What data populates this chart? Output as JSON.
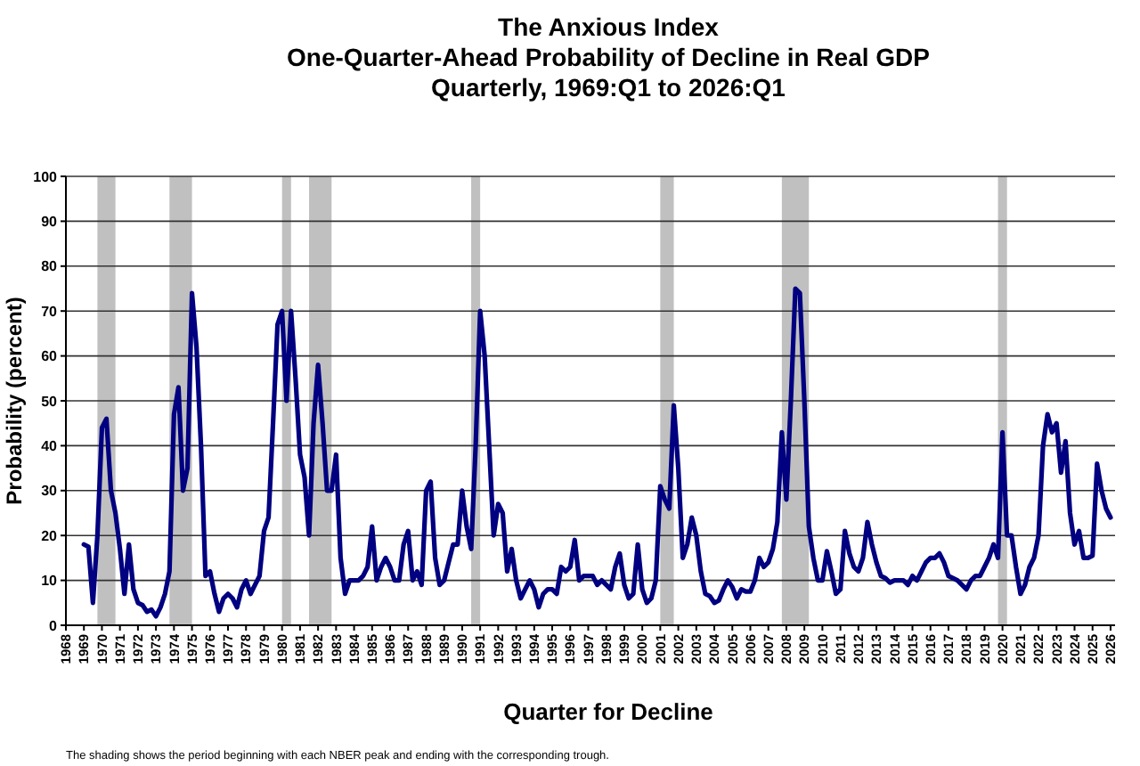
{
  "chart_data": {
    "type": "line",
    "title": "The Anxious Index",
    "subtitle": "One-Quarter-Ahead Probability of Decline in Real GDP\nQuarterly, 1969:Q1 to 2026:Q1",
    "xlabel": "Quarter for Decline",
    "ylabel": "Probability (percent)",
    "annotations": [
      "The shading shows the period beginning with each NBER peak and ending with the corresponding trough."
    ],
    "xlim": [
      1968,
      2026.25
    ],
    "xticks": [
      1968,
      1969,
      1970,
      1971,
      1972,
      1973,
      1974,
      1975,
      1976,
      1977,
      1978,
      1979,
      1980,
      1981,
      1982,
      1983,
      1984,
      1985,
      1986,
      1987,
      1988,
      1989,
      1990,
      1991,
      1992,
      1993,
      1994,
      1995,
      1996,
      1997,
      1998,
      1999,
      2000,
      2001,
      2002,
      2003,
      2004,
      2005,
      2006,
      2007,
      2008,
      2009,
      2010,
      2011,
      2012,
      2013,
      2014,
      2015,
      2016,
      2017,
      2018,
      2019,
      2020,
      2021,
      2022,
      2023,
      2024,
      2025,
      2026
    ],
    "ylim": [
      0,
      100
    ],
    "yticks": [
      0,
      10,
      20,
      30,
      40,
      50,
      60,
      70,
      80,
      90,
      100
    ],
    "grid": "y",
    "marker": "none",
    "line_style": "solid",
    "bands": [
      {
        "axis": "x",
        "from": 1969.75,
        "to": 1970.75,
        "color": "#c0c0c0"
      },
      {
        "axis": "x",
        "from": 1973.75,
        "to": 1975.0,
        "color": "#c0c0c0"
      },
      {
        "axis": "x",
        "from": 1980.0,
        "to": 1980.5,
        "color": "#c0c0c0"
      },
      {
        "axis": "x",
        "from": 1981.5,
        "to": 1982.75,
        "color": "#c0c0c0"
      },
      {
        "axis": "x",
        "from": 1990.5,
        "to": 1991.0,
        "color": "#c0c0c0"
      },
      {
        "axis": "x",
        "from": 2001.0,
        "to": 2001.75,
        "color": "#c0c0c0"
      },
      {
        "axis": "x",
        "from": 2007.75,
        "to": 2009.25,
        "color": "#c0c0c0"
      },
      {
        "axis": "x",
        "from": 2019.75,
        "to": 2020.25,
        "color": "#c0c0c0"
      }
    ],
    "series": [
      {
        "color": "#000080",
        "x": [
          1969,
          1969.25,
          1969.5,
          1969.75,
          1970,
          1970.25,
          1970.5,
          1970.75,
          1971,
          1971.25,
          1971.5,
          1971.75,
          1972,
          1972.25,
          1972.5,
          1972.75,
          1973,
          1973.25,
          1973.5,
          1973.75,
          1974,
          1974.25,
          1974.5,
          1974.75,
          1975,
          1975.25,
          1975.5,
          1975.75,
          1976,
          1976.25,
          1976.5,
          1976.75,
          1977,
          1977.25,
          1977.5,
          1977.75,
          1978,
          1978.25,
          1978.5,
          1978.75,
          1979,
          1979.25,
          1979.5,
          1979.75,
          1980,
          1980.25,
          1980.5,
          1980.75,
          1981,
          1981.25,
          1981.5,
          1981.75,
          1982,
          1982.25,
          1982.5,
          1982.75,
          1983,
          1983.25,
          1983.5,
          1983.75,
          1984,
          1984.25,
          1984.5,
          1984.75,
          1985,
          1985.25,
          1985.5,
          1985.75,
          1986,
          1986.25,
          1986.5,
          1986.75,
          1987,
          1987.25,
          1987.5,
          1987.75,
          1988,
          1988.25,
          1988.5,
          1988.75,
          1989,
          1989.25,
          1989.5,
          1989.75,
          1990,
          1990.25,
          1990.5,
          1990.75,
          1991,
          1991.25,
          1991.5,
          1991.75,
          1992,
          1992.25,
          1992.5,
          1992.75,
          1993,
          1993.25,
          1993.5,
          1993.75,
          1994,
          1994.25,
          1994.5,
          1994.75,
          1995,
          1995.25,
          1995.5,
          1995.75,
          1996,
          1996.25,
          1996.5,
          1996.75,
          1997,
          1997.25,
          1997.5,
          1997.75,
          1998,
          1998.25,
          1998.5,
          1998.75,
          1999,
          1999.25,
          1999.5,
          1999.75,
          2000,
          2000.25,
          2000.5,
          2000.75,
          2001,
          2001.25,
          2001.5,
          2001.75,
          2002,
          2002.25,
          2002.5,
          2002.75,
          2003,
          2003.25,
          2003.5,
          2003.75,
          2004,
          2004.25,
          2004.5,
          2004.75,
          2005,
          2005.25,
          2005.5,
          2005.75,
          2006,
          2006.25,
          2006.5,
          2006.75,
          2007,
          2007.25,
          2007.5,
          2007.75,
          2008,
          2008.25,
          2008.5,
          2008.75,
          2009,
          2009.25,
          2009.5,
          2009.75,
          2010,
          2010.25,
          2010.5,
          2010.75,
          2011,
          2011.25,
          2011.5,
          2011.75,
          2012,
          2012.25,
          2012.5,
          2012.75,
          2013,
          2013.25,
          2013.5,
          2013.75,
          2014,
          2014.25,
          2014.5,
          2014.75,
          2015,
          2015.25,
          2015.5,
          2015.75,
          2016,
          2016.25,
          2016.5,
          2016.75,
          2017,
          2017.25,
          2017.5,
          2017.75,
          2018,
          2018.25,
          2018.5,
          2018.75,
          2019,
          2019.25,
          2019.5,
          2019.75,
          2020,
          2020.25,
          2020.5,
          2020.75,
          2021,
          2021.25,
          2021.5,
          2021.75,
          2022,
          2022.25,
          2022.5,
          2022.75,
          2023,
          2023.25,
          2023.5,
          2023.75,
          2024,
          2024.25,
          2024.5,
          2024.75,
          2025,
          2025.25,
          2025.5,
          2025.75,
          2026
        ],
        "values": [
          18,
          17.5,
          5,
          20,
          44,
          46,
          30,
          25,
          17,
          7,
          18,
          8,
          5,
          4.5,
          3,
          3.5,
          2,
          4,
          7,
          12,
          47,
          53,
          30,
          35,
          74,
          62,
          40,
          11,
          12,
          7,
          3,
          6,
          7,
          6,
          4,
          8,
          10,
          7,
          9,
          11,
          21,
          24,
          45,
          67,
          70,
          50,
          70,
          55,
          38,
          33,
          20,
          45,
          58,
          45,
          30,
          30,
          38,
          15,
          7,
          10,
          10,
          10,
          11,
          13,
          22,
          10,
          13,
          15,
          13,
          10,
          10,
          18,
          21,
          10,
          12,
          9,
          30,
          32,
          15,
          9,
          10,
          14,
          18,
          18,
          30,
          22,
          17,
          40,
          70,
          60,
          40,
          20,
          27,
          25,
          12,
          17,
          10,
          6,
          8,
          10,
          8,
          4,
          7,
          8,
          8,
          7,
          13,
          12,
          13,
          19,
          10,
          11,
          11,
          11,
          9,
          10,
          9,
          8,
          13,
          16,
          9,
          6,
          7,
          18,
          8,
          5,
          6,
          10,
          31,
          28,
          26,
          49,
          35,
          15,
          18,
          24,
          20,
          12,
          7,
          6.5,
          5,
          5.5,
          8,
          10,
          8.5,
          6,
          8,
          7.5,
          7.5,
          10,
          15,
          13,
          14,
          17,
          23,
          43,
          28,
          50,
          75,
          74,
          50,
          22,
          15,
          10,
          10,
          16.5,
          12,
          7,
          8,
          21,
          16,
          13,
          12,
          15,
          23,
          18,
          14,
          11,
          10.5,
          9.5,
          10,
          10,
          10,
          9,
          11,
          10,
          12,
          14,
          15,
          15,
          16,
          14,
          11,
          10.5,
          10,
          9,
          8,
          10,
          11,
          11,
          13,
          15,
          18,
          15,
          43,
          20,
          20,
          13,
          7,
          9,
          13,
          15,
          20,
          40,
          47,
          43,
          45,
          34,
          41,
          25,
          18,
          21,
          15,
          15,
          15.5,
          36,
          30,
          26,
          24
        ]
      }
    ]
  }
}
